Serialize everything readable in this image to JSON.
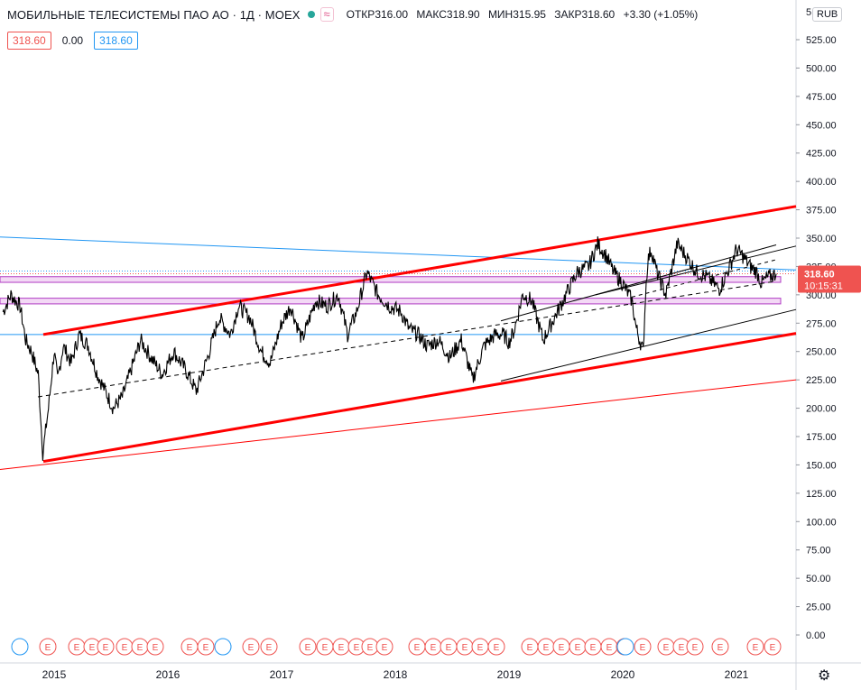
{
  "header": {
    "title": "МОБИЛЬНЫЕ ТЕЛЕСИСТЕМЫ ПАО АО · 1Д · MOEX",
    "wave_symbol": "≈",
    "ohlc": [
      {
        "key": "ОТКР",
        "value": "316.00"
      },
      {
        "key": "МАКС",
        "value": "318.90"
      },
      {
        "key": "МИН",
        "value": "315.95"
      },
      {
        "key": "ЗАКР",
        "value": "318.60"
      }
    ],
    "change": "+3.30 (+1.05%)",
    "status_color": "#26a69a"
  },
  "value_boxes": {
    "left": "318.60",
    "middle": "0.00",
    "right": "318.60"
  },
  "currency": "RUB",
  "price_label": {
    "price": "318.60",
    "countdown": "10:15:31"
  },
  "colors": {
    "price": "#000000",
    "channel": "#ff0000",
    "blue_line": "#2196f3",
    "zone_fill": "#f3d9f5",
    "zone_border": "#b13cc4",
    "price_label_bg": "#ef5350"
  },
  "chart_data": {
    "type": "line",
    "title": "",
    "xlabel": "",
    "ylabel": "",
    "x_ticks": [
      "2015",
      "2016",
      "2017",
      "2018",
      "2019",
      "2020",
      "2021"
    ],
    "y_ticks": [
      "0.00",
      "25.00",
      "50.00",
      "75.00",
      "100.00",
      "125.00",
      "150.00",
      "175.00",
      "200.00",
      "225.00",
      "250.00",
      "275.00",
      "300.00",
      "325.00",
      "350.00",
      "375.00",
      "400.00",
      "425.00",
      "450.00",
      "475.00",
      "500.00",
      "525.00"
    ],
    "y_top_partial": "5",
    "ylim": [
      0,
      550
    ],
    "xlim": [
      2014.55,
      2021.55
    ],
    "series": [
      {
        "x": [
          2014.55,
          2014.62,
          2014.7,
          2014.75,
          2014.8,
          2014.86,
          2014.9,
          2014.95,
          2015.0,
          2015.03,
          2015.08,
          2015.15,
          2015.22,
          2015.3,
          2015.38,
          2015.45,
          2015.52,
          2015.6,
          2015.68,
          2015.76,
          2015.85,
          2015.95,
          2016.05,
          2016.15,
          2016.25,
          2016.35,
          2016.45,
          2016.55,
          2016.62,
          2016.72,
          2016.82,
          2016.9,
          2017.0,
          2017.08,
          2017.18,
          2017.3,
          2017.4,
          2017.5,
          2017.58,
          2017.66,
          2017.75,
          2017.85,
          2017.95,
          2018.05,
          2018.12,
          2018.2,
          2018.28,
          2018.38,
          2018.48,
          2018.58,
          2018.68,
          2018.78,
          2018.88,
          2018.95,
          2019.0,
          2019.05,
          2019.12,
          2019.2,
          2019.3,
          2019.4,
          2019.5,
          2019.6,
          2019.7,
          2019.78,
          2019.85,
          2019.92,
          2020.0,
          2020.08,
          2020.12,
          2020.18,
          2020.2,
          2020.22,
          2020.25,
          2020.3,
          2020.38,
          2020.48,
          2020.55,
          2020.65,
          2020.75,
          2020.85,
          2020.92,
          2021.0,
          2021.05,
          2021.12,
          2021.18,
          2021.22,
          2021.27,
          2021.35
        ],
        "values": [
          285,
          300,
          290,
          260,
          250,
          230,
          160,
          200,
          250,
          225,
          255,
          240,
          265,
          255,
          230,
          215,
          200,
          210,
          235,
          260,
          245,
          230,
          250,
          235,
          215,
          245,
          280,
          265,
          290,
          280,
          250,
          240,
          275,
          290,
          260,
          295,
          290,
          300,
          265,
          285,
          320,
          300,
          290,
          285,
          270,
          265,
          255,
          260,
          245,
          260,
          225,
          255,
          265,
          265,
          258,
          270,
          300,
          295,
          260,
          280,
          300,
          320,
          325,
          345,
          335,
          320,
          310,
          295,
          270,
          250,
          300,
          330,
          340,
          320,
          300,
          345,
          335,
          320,
          315,
          305,
          320,
          340,
          335,
          325,
          320,
          310,
          315,
          318.6
        ]
      }
    ]
  }
}
